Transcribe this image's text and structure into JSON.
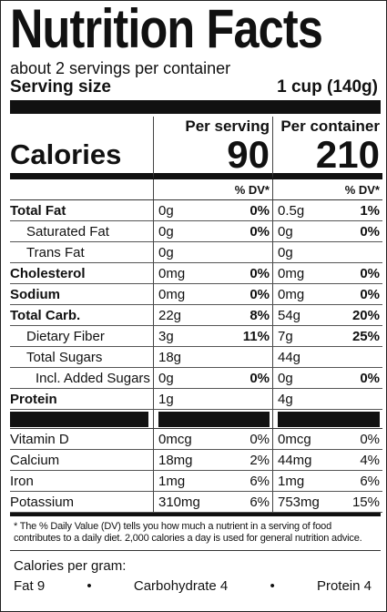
{
  "title": "Nutrition Facts",
  "servings": "about 2 servings per container",
  "serving_size": {
    "label": "Serving size",
    "value": "1 cup (140g)"
  },
  "columns": [
    "Per serving",
    "Per container"
  ],
  "calories": {
    "label": "Calories",
    "serving": "90",
    "container": "210"
  },
  "dv_header": [
    "% DV*",
    "% DV*"
  ],
  "nutrients": [
    {
      "name": "Total Fat",
      "serving": {
        "amount": "0g",
        "dv": "0%"
      },
      "container": {
        "amount": "0.5g",
        "dv": "1%"
      }
    },
    {
      "name": "Saturated Fat",
      "serving": {
        "amount": "0g",
        "dv": "0%"
      },
      "container": {
        "amount": "0g",
        "dv": "0%"
      }
    },
    {
      "name": "Trans Fat",
      "serving": {
        "amount": "0g"
      },
      "container": {
        "amount": "0g"
      }
    },
    {
      "name": "Cholesterol",
      "serving": {
        "amount": "0mg",
        "dv": "0%"
      },
      "container": {
        "amount": "0mg",
        "dv": "0%"
      }
    },
    {
      "name": "Sodium",
      "serving": {
        "amount": "0mg",
        "dv": "0%"
      },
      "container": {
        "amount": "0mg",
        "dv": "0%"
      }
    },
    {
      "name": "Total Carb.",
      "serving": {
        "amount": "22g",
        "dv": "8%"
      },
      "container": {
        "amount": "54g",
        "dv": "20%"
      }
    },
    {
      "name": "Dietary Fiber",
      "serving": {
        "amount": "3g",
        "dv": "11%"
      },
      "container": {
        "amount": "7g",
        "dv": "25%"
      }
    },
    {
      "name": "Total Sugars",
      "serving": {
        "amount": "18g"
      },
      "container": {
        "amount": "44g"
      }
    },
    {
      "name": "Incl. Added Sugars",
      "serving": {
        "amount": "0g",
        "dv": "0%"
      },
      "container": {
        "amount": "0g",
        "dv": "0%"
      }
    },
    {
      "name": "Protein",
      "serving": {
        "amount": "1g"
      },
      "container": {
        "amount": "4g"
      }
    }
  ],
  "vitamins": [
    {
      "name": "Vitamin D",
      "serving": {
        "amount": "0mcg",
        "dv": "0%"
      },
      "container": {
        "amount": "0mcg",
        "dv": "0%"
      }
    },
    {
      "name": "Calcium",
      "serving": {
        "amount": "18mg",
        "dv": "2%"
      },
      "container": {
        "amount": "44mg",
        "dv": "4%"
      }
    },
    {
      "name": "Iron",
      "serving": {
        "amount": "1mg",
        "dv": "6%"
      },
      "container": {
        "amount": "1mg",
        "dv": "6%"
      }
    },
    {
      "name": "Potassium",
      "serving": {
        "amount": "310mg",
        "dv": "6%"
      },
      "container": {
        "amount": "753mg",
        "dv": "15%"
      }
    }
  ],
  "footnote": "* The % Daily Value (DV) tells you how much a nutrient in a serving of food contributes to a daily diet. 2,000 calories a day is used for general nutrition advice.",
  "calories_per_gram": {
    "label": "Calories per gram:",
    "items": [
      "Fat 9",
      "Carbohydrate 4",
      "Protein 4"
    ]
  }
}
